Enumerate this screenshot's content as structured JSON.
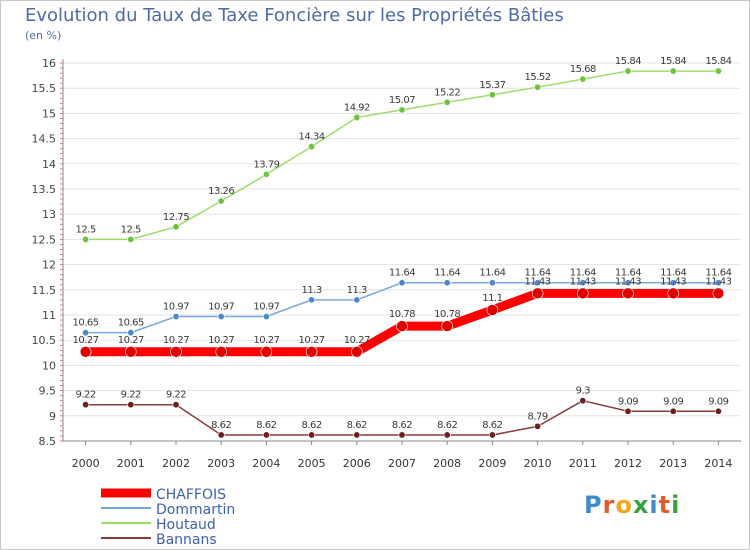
{
  "title": "Evolution du Taux de Taxe Foncière sur les Propriétés Bâties",
  "unit_label": "(en %)",
  "logo": {
    "text": "Proxiti",
    "letters": [
      {
        "ch": "P",
        "color": "#3a8bd0"
      },
      {
        "ch": "r",
        "color": "#e05a2a"
      },
      {
        "ch": "o",
        "color": "#f3a51d"
      },
      {
        "ch": "x",
        "color": "#3aa23a"
      },
      {
        "ch": "i",
        "color": "#3a8bd0"
      },
      {
        "ch": "t",
        "color": "#e05a2a"
      },
      {
        "ch": "i",
        "color": "#3aa23a"
      }
    ]
  },
  "chart_data": {
    "type": "line",
    "x": [
      "2000",
      "2001",
      "2002",
      "2003",
      "2004",
      "2005",
      "2006",
      "2007",
      "2008",
      "2009",
      "2010",
      "2011",
      "2012",
      "2013",
      "2014"
    ],
    "ylim": [
      8.5,
      16
    ],
    "yticks": [
      8.5,
      9,
      9.5,
      10,
      10.5,
      11,
      11.5,
      12,
      12.5,
      13,
      13.5,
      14,
      14.5,
      15,
      15.5,
      16
    ],
    "ytick_labels": [
      "8.5",
      "9",
      "9.5",
      "10",
      "10.5",
      "11",
      "11.5",
      "12",
      "12.5",
      "13",
      "13.5",
      "14",
      "14.5",
      "15",
      "15.5",
      "16"
    ],
    "grid": "horizontal",
    "legend_position": "bottom-left",
    "series": [
      {
        "name": "Houtaud",
        "color": "#99dd66",
        "marker": "#6fc23d",
        "width": 1.5,
        "values": [
          12.5,
          12.5,
          12.75,
          13.26,
          13.79,
          14.34,
          14.92,
          15.07,
          15.22,
          15.37,
          15.52,
          15.68,
          15.84,
          15.84,
          15.84
        ],
        "labels": [
          "12.5",
          "12.5",
          "12.75",
          "13.26",
          "13.79",
          "14.34",
          "14.92",
          "15.07",
          "15.22",
          "15.37",
          "15.52",
          "15.68",
          "15.84",
          "15.84",
          "15.84"
        ]
      },
      {
        "name": "Dommartin",
        "color": "#79a9dc",
        "marker": "#4d88c9",
        "width": 1.5,
        "values": [
          10.65,
          10.65,
          10.97,
          10.97,
          10.97,
          11.3,
          11.3,
          11.64,
          11.64,
          11.64,
          11.64,
          11.64,
          11.64,
          11.64,
          11.64
        ],
        "labels": [
          "10.65",
          "10.65",
          "10.97",
          "10.97",
          "10.97",
          "11.3",
          "11.3",
          "11.64",
          "11.64",
          "11.64",
          "11.64",
          "11.64",
          "11.64",
          "11.64",
          "11.64"
        ]
      },
      {
        "name": "CHAFFOIS",
        "color": "#ff0000",
        "marker": "#e00000",
        "width": 9,
        "values": [
          10.27,
          10.27,
          10.27,
          10.27,
          10.27,
          10.27,
          10.27,
          10.78,
          10.78,
          11.1,
          11.43,
          11.43,
          11.43,
          11.43,
          11.43
        ],
        "labels": [
          "10.27",
          "10.27",
          "10.27",
          "10.27",
          "10.27",
          "10.27",
          "10.27",
          "10.78",
          "10.78",
          "11.1",
          "11.43",
          "11.43",
          "11.43",
          "11.43",
          "11.43"
        ]
      },
      {
        "name": "Bannans",
        "color": "#8a3a3a",
        "marker": "#6b1f1f",
        "width": 1.5,
        "values": [
          9.22,
          9.22,
          9.22,
          8.62,
          8.62,
          8.62,
          8.62,
          8.62,
          8.62,
          8.62,
          8.79,
          9.3,
          9.09,
          9.09,
          9.09
        ],
        "labels": [
          "9.22",
          "9.22",
          "9.22",
          "8.62",
          "8.62",
          "8.62",
          "8.62",
          "8.62",
          "8.62",
          "8.62",
          "8.79",
          "9.3",
          "9.09",
          "9.09",
          "9.09"
        ]
      }
    ],
    "legend": [
      {
        "name": "CHAFFOIS",
        "color": "#ff0000",
        "width": 9
      },
      {
        "name": "Dommartin",
        "color": "#79a9dc",
        "width": 2
      },
      {
        "name": "Houtaud",
        "color": "#99dd66",
        "width": 2
      },
      {
        "name": "Bannans",
        "color": "#8a3a3a",
        "width": 2
      }
    ],
    "legend_text_color": "#3d5fb0"
  }
}
